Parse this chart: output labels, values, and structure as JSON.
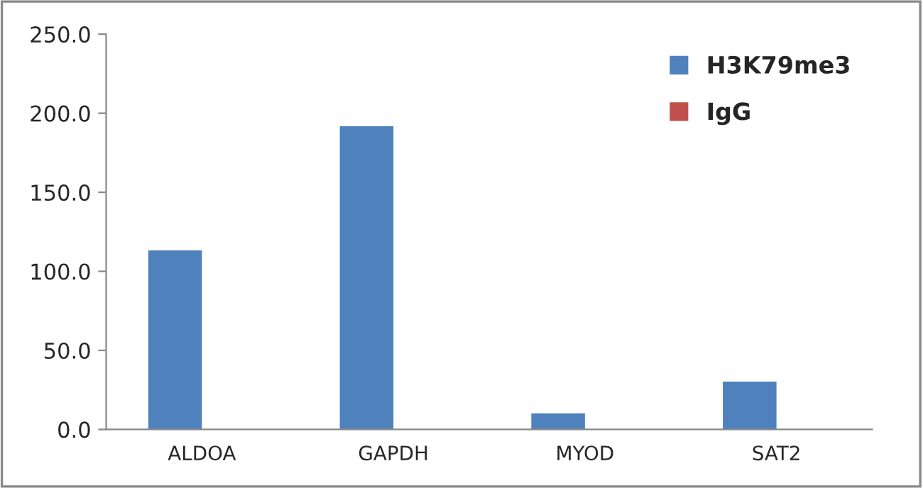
{
  "chart_data": {
    "type": "bar",
    "categories": [
      "ALDOA",
      "GAPDH",
      "MYOD",
      "SAT2"
    ],
    "series": [
      {
        "name": "H3K79me3",
        "color": "#4f81bd",
        "values": [
          113.3,
          191.7,
          10.2,
          30.2
        ]
      },
      {
        "name": "IgG",
        "color": "#c0504d",
        "values": [
          0,
          0,
          0,
          0
        ]
      }
    ],
    "ylim": [
      0,
      250
    ],
    "yticks": [
      {
        "value": 0,
        "label": "0.0"
      },
      {
        "value": 50,
        "label": "50.0"
      },
      {
        "value": 100,
        "label": "100.0"
      },
      {
        "value": 150,
        "label": "150.0"
      },
      {
        "value": 200,
        "label": "200.0"
      },
      {
        "value": 250,
        "label": "250.0"
      }
    ],
    "grid": false,
    "legend": "top right"
  }
}
